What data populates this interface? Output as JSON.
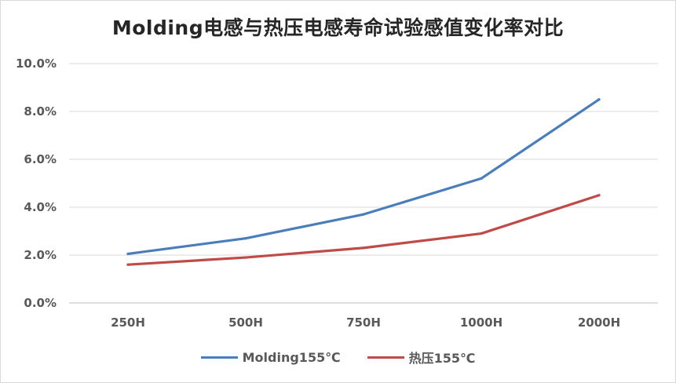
{
  "chart_data": {
    "type": "line",
    "title": "Molding电感与热压电感寿命试验感值变化率对比",
    "xlabel": "",
    "ylabel": "",
    "categories": [
      "250H",
      "500H",
      "750H",
      "1000H",
      "2000H"
    ],
    "ylim": [
      0,
      10
    ],
    "yticks": [
      "0.0%",
      "2.0%",
      "4.0%",
      "6.0%",
      "8.0%",
      "10.0%"
    ],
    "grid": true,
    "legend_position": "bottom",
    "series": [
      {
        "name": "Molding155℃",
        "color": "#4a7ebb",
        "values": [
          2.05,
          2.7,
          3.7,
          5.2,
          8.5
        ]
      },
      {
        "name": "热压155℃",
        "color": "#be4b48",
        "values": [
          1.6,
          1.9,
          2.3,
          2.9,
          4.5
        ]
      }
    ]
  }
}
